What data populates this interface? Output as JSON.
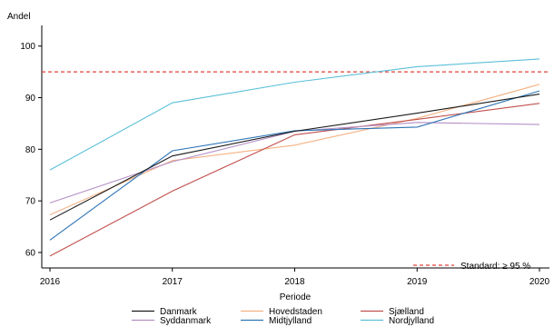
{
  "chart_data": {
    "type": "line",
    "xlabel": "Periode",
    "ylabel": "Andel",
    "x": [
      2016,
      2017,
      2018,
      2019,
      2020
    ],
    "xlim": [
      2016,
      2020
    ],
    "ylim": [
      57,
      104
    ],
    "yticks": [
      60,
      70,
      80,
      90,
      100
    ],
    "grid": false,
    "series": [
      {
        "name": "Danmark",
        "color": "#1a1a1a",
        "values": [
          66.3,
          78.7,
          83.5,
          87.0,
          90.7
        ]
      },
      {
        "name": "Hovedstaden",
        "color": "#f4b183",
        "values": [
          67.3,
          77.8,
          80.8,
          86.0,
          92.6
        ]
      },
      {
        "name": "Sjælland",
        "color": "#c0504d",
        "values": [
          59.3,
          71.9,
          82.8,
          85.8,
          88.9
        ]
      },
      {
        "name": "Syddanmark",
        "color": "#b48ec6",
        "values": [
          69.6,
          77.6,
          83.5,
          85.2,
          84.8
        ]
      },
      {
        "name": "Midtjylland",
        "color": "#2e75b6",
        "values": [
          62.4,
          79.7,
          83.6,
          84.3,
          91.3
        ]
      },
      {
        "name": "Nordjylland",
        "color": "#5bc0d8",
        "values": [
          76.0,
          89.0,
          93.0,
          96.0,
          97.5
        ]
      }
    ],
    "reference_line": {
      "label": "Standard: ≥ 95 %",
      "value": 95,
      "color": "#e0413a",
      "style": "dashed"
    },
    "legend_position": "bottom"
  }
}
